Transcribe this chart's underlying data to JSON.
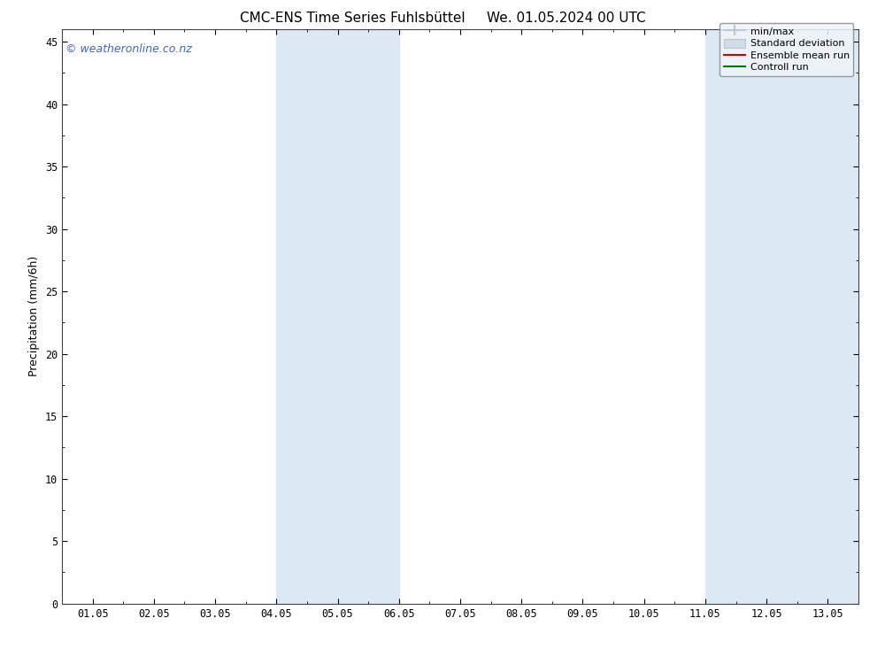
{
  "title": "CMC-ENS Time Series Fuhlsbüttel",
  "title2": "We. 01.05.2024 00 UTC",
  "ylabel": "Precipitation (mm/6h)",
  "watermark": "© weatheronline.co.nz",
  "x_tick_labels": [
    "01.05",
    "02.05",
    "03.05",
    "04.05",
    "05.05",
    "06.05",
    "07.05",
    "08.05",
    "09.05",
    "10.05",
    "11.05",
    "12.05",
    "13.05"
  ],
  "x_tick_positions": [
    0,
    1,
    2,
    3,
    4,
    5,
    6,
    7,
    8,
    9,
    10,
    11,
    12
  ],
  "xlim": [
    -0.5,
    12.5
  ],
  "ylim": [
    0,
    46
  ],
  "yticks": [
    0,
    5,
    10,
    15,
    20,
    25,
    30,
    35,
    40,
    45
  ],
  "shaded_bands": [
    {
      "x_start": 3.0,
      "x_end": 5.0,
      "color": "#dce9f5"
    },
    {
      "x_start": 10.0,
      "x_end": 12.5,
      "color": "#dce9f5"
    }
  ],
  "background_color": "#ffffff",
  "title_fontsize": 11,
  "label_fontsize": 9,
  "tick_fontsize": 8.5,
  "watermark_color": "#4169b0",
  "legend_minmax_color": "#b8c8d8",
  "legend_std_facecolor": "#d0dce8",
  "legend_std_edgecolor": "#b8c8d8",
  "legend_ensemble_color": "#cc0000",
  "legend_control_color": "#007700"
}
